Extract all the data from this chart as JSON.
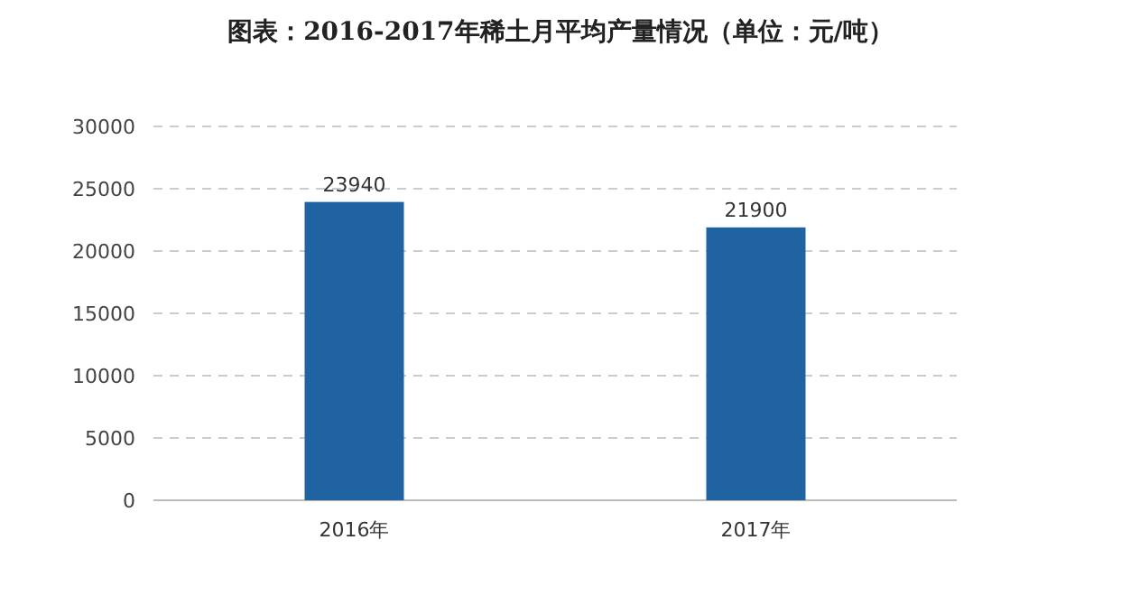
{
  "chart_data": {
    "type": "bar",
    "title": "图表：2016-2017年稀土月平均产量情况（单位：元/吨）",
    "categories": [
      "2016年",
      "2017年"
    ],
    "values": [
      23940,
      21900
    ],
    "color": "#1f64a0",
    "ylim": [
      0,
      30000
    ],
    "yticks": [
      0,
      5000,
      10000,
      15000,
      20000,
      25000,
      30000
    ],
    "grid": "y",
    "data_labels": true
  }
}
